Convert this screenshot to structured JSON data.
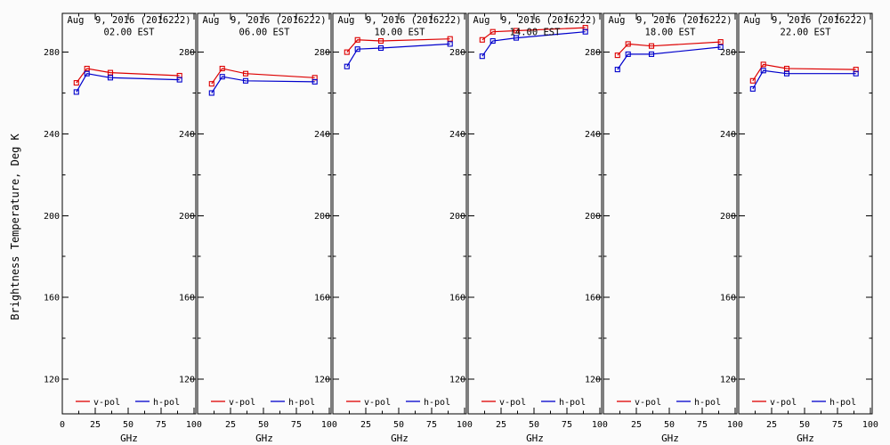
{
  "figure": {
    "background": "#fbfbfb",
    "frame_color": "#000000",
    "text_color": "#000000"
  },
  "chart_data": {
    "type": "line",
    "ylabel": "Brightness Temperature, Deg K",
    "xlabel": "GHz",
    "xlim": [
      0,
      101.4
    ],
    "ylim": [
      103,
      299
    ],
    "xticks": [
      0,
      25,
      50,
      75,
      100
    ],
    "xticks_minor": [
      12.5,
      37.5,
      62.5,
      87.5
    ],
    "yticks": [
      120,
      160,
      200,
      240,
      280
    ],
    "yticks_minor": [
      140,
      180,
      220,
      260
    ],
    "grid": false,
    "marker": "open-square",
    "legend": {
      "position": "bottom-inside-each-panel",
      "entries": [
        {
          "label": "v-pol",
          "color": "#dd0000"
        },
        {
          "label": "h-pol",
          "color": "#0000cc"
        }
      ]
    },
    "x": [
      10.7,
      18.7,
      36.5,
      89.0
    ],
    "panels": [
      {
        "title_line1": "Aug  9, 2016 (2016222)",
        "title_line2": "02.00 EST",
        "series": [
          {
            "name": "v-pol",
            "color": "#dd0000",
            "values": [
              265.0,
              272.0,
              270.0,
              268.5
            ]
          },
          {
            "name": "h-pol",
            "color": "#0000cc",
            "values": [
              260.5,
              269.5,
              267.5,
              266.5
            ]
          }
        ]
      },
      {
        "title_line1": "Aug  9, 2016 (2016222)",
        "title_line2": "06.00 EST",
        "series": [
          {
            "name": "v-pol",
            "color": "#dd0000",
            "values": [
              264.5,
              272.0,
              269.5,
              267.5
            ]
          },
          {
            "name": "h-pol",
            "color": "#0000cc",
            "values": [
              260.0,
              268.0,
              266.0,
              265.5
            ]
          }
        ]
      },
      {
        "title_line1": "Aug  9, 2016 (2016222)",
        "title_line2": "10.00 EST",
        "series": [
          {
            "name": "v-pol",
            "color": "#dd0000",
            "values": [
              280.0,
              286.0,
              285.5,
              286.5
            ]
          },
          {
            "name": "h-pol",
            "color": "#0000cc",
            "values": [
              273.0,
              281.5,
              282.0,
              284.0
            ]
          }
        ]
      },
      {
        "title_line1": "Aug  9, 2016 (2016222)",
        "title_line2": "14.00 EST",
        "series": [
          {
            "name": "v-pol",
            "color": "#dd0000",
            "values": [
              286.0,
              290.0,
              290.5,
              292.0
            ]
          },
          {
            "name": "h-pol",
            "color": "#0000cc",
            "values": [
              278.0,
              285.5,
              287.0,
              290.0
            ]
          }
        ]
      },
      {
        "title_line1": "Aug  9, 2016 (2016222)",
        "title_line2": "18.00 EST",
        "series": [
          {
            "name": "v-pol",
            "color": "#dd0000",
            "values": [
              278.5,
              284.0,
              283.0,
              285.0
            ]
          },
          {
            "name": "h-pol",
            "color": "#0000cc",
            "values": [
              271.5,
              279.0,
              279.0,
              282.5
            ]
          }
        ]
      },
      {
        "title_line1": "Aug  9, 2016 (2016222)",
        "title_line2": "22.00 EST",
        "series": [
          {
            "name": "v-pol",
            "color": "#dd0000",
            "values": [
              266.0,
              274.0,
              272.0,
              271.5
            ]
          },
          {
            "name": "h-pol",
            "color": "#0000cc",
            "values": [
              262.0,
              271.0,
              269.5,
              269.5
            ]
          }
        ]
      }
    ]
  }
}
